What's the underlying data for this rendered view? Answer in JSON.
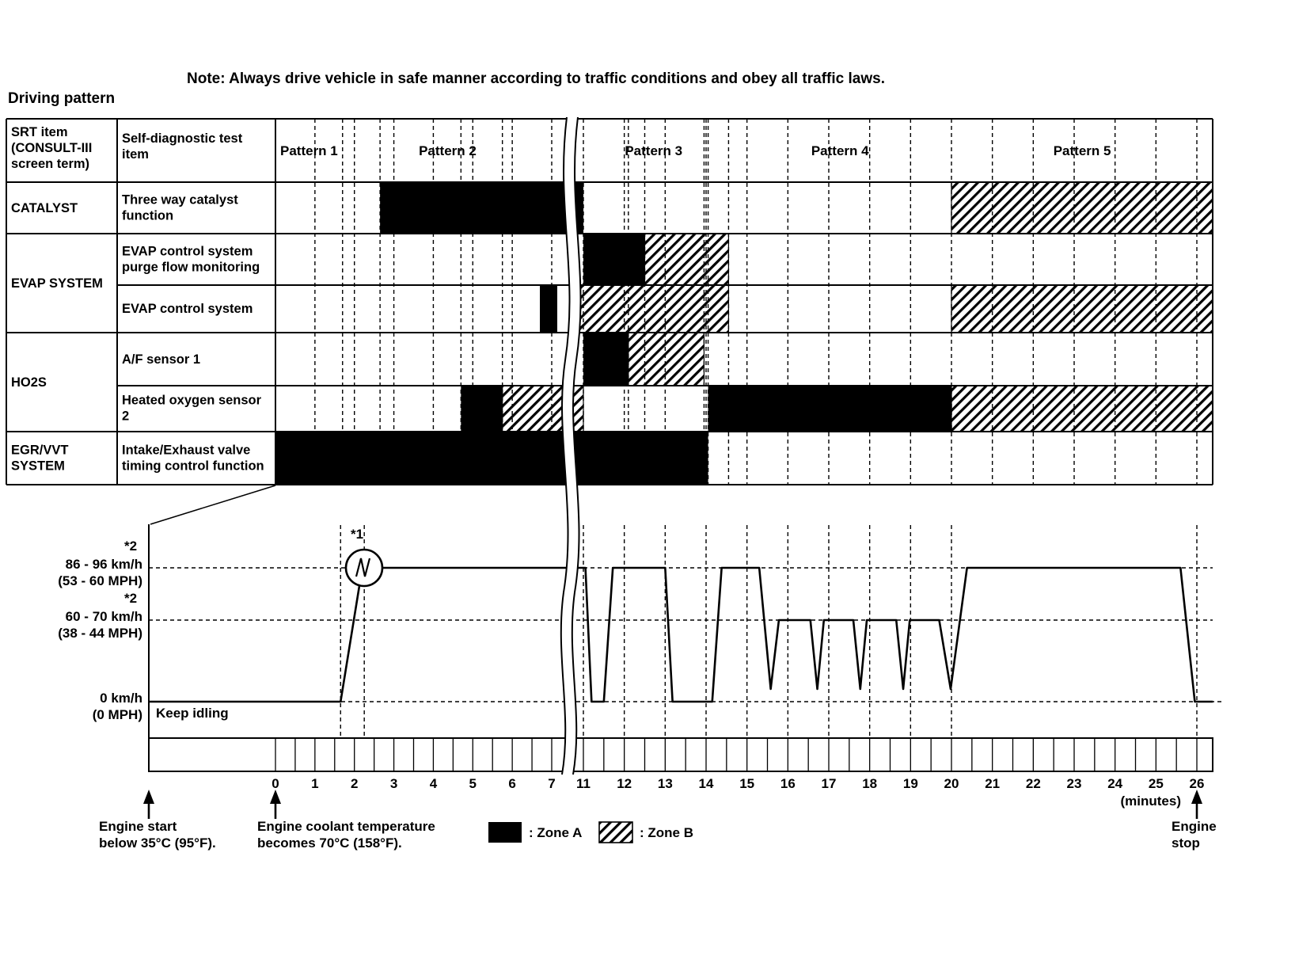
{
  "note": "Note: Always drive vehicle in safe manner according to traffic conditions and obey all traffic laws.",
  "title": "Driving pattern",
  "table": {
    "col1_header": "SRT item (CONSULT-III screen term)",
    "col2_header": "Self-diagnostic test item",
    "patterns": [
      {
        "label": "Pattern 1",
        "t0": 0,
        "t1": 1.7
      },
      {
        "label": "Pattern 2",
        "t0": 1.7,
        "t1": 7.12
      },
      {
        "label": "Pattern 3",
        "t0": 10.4,
        "t1": 14.55
      },
      {
        "label": "Pattern 4",
        "t0": 14.55,
        "t1": 20
      },
      {
        "label": "Pattern 5",
        "t0": 20,
        "t1": 26.39
      }
    ],
    "groups": [
      {
        "label": "CATALYST",
        "row_start": 0,
        "row_end": 0
      },
      {
        "label": "EVAP SYSTEM",
        "row_start": 1,
        "row_end": 2
      },
      {
        "label": "HO2S",
        "row_start": 3,
        "row_end": 4
      },
      {
        "label": "EGR/VVT SYSTEM",
        "row_start": 5,
        "row_end": 5
      }
    ],
    "rows": [
      {
        "test_item": "Three way catalyst function",
        "bars": [
          {
            "t0": 2.65,
            "t1": 11,
            "zone": "A"
          },
          {
            "t0": 20,
            "t1": 26.39,
            "zone": "B"
          }
        ]
      },
      {
        "test_item": "EVAP control system purge flow monitoring",
        "bars": [
          {
            "t0": 11,
            "t1": 12.5,
            "zone": "A"
          },
          {
            "t0": 12.5,
            "t1": 14.55,
            "zone": "B"
          }
        ]
      },
      {
        "test_item": "EVAP control system",
        "bars": [
          {
            "t0": 6.7,
            "t1": 7.7,
            "zone": "A"
          },
          {
            "t0": 10.3,
            "t1": 14.55,
            "zone": "B"
          },
          {
            "t0": 20,
            "t1": 26.39,
            "zone": "B"
          }
        ]
      },
      {
        "test_item": "A/F sensor 1",
        "bars": [
          {
            "t0": 11,
            "t1": 12.1,
            "zone": "A"
          },
          {
            "t0": 12.1,
            "t1": 13.95,
            "zone": "B"
          }
        ]
      },
      {
        "test_item": "Heated oxygen sensor 2",
        "bars": [
          {
            "t0": 4.7,
            "t1": 5.75,
            "zone": "A"
          },
          {
            "t0": 5.75,
            "t1": 11,
            "zone": "B"
          },
          {
            "t0": 14.05,
            "t1": 20,
            "zone": "A"
          },
          {
            "t0": 20,
            "t1": 26.39,
            "zone": "B"
          }
        ]
      },
      {
        "test_item": "Intake/Exhaust valve timing control function",
        "bars": [
          {
            "t0": 0,
            "t1": 14.05,
            "zone": "A"
          }
        ]
      }
    ]
  },
  "graph": {
    "levels": [
      {
        "id": "hi",
        "label": "86 - 96 km/h\n(53 - 60 MPH)",
        "star": "*2"
      },
      {
        "id": "mid",
        "label": "60 - 70 km/h\n(38 - 44 MPH)",
        "star": "*2"
      },
      {
        "id": "zero",
        "label": "0 km/h\n(0 MPH)"
      }
    ],
    "keep_idling": "Keep idling",
    "star1": "*1",
    "trace": [
      [
        -3.2,
        "zero"
      ],
      [
        1.65,
        "zero"
      ],
      [
        2.2,
        "hi"
      ],
      [
        11.05,
        "hi"
      ],
      [
        11.2,
        "zero"
      ],
      [
        11.5,
        "zero"
      ],
      [
        11.72,
        "hi"
      ],
      [
        13.0,
        "hi"
      ],
      [
        13.18,
        "zero"
      ],
      [
        14.15,
        "zero"
      ],
      [
        14.38,
        "hi"
      ],
      [
        15.3,
        "hi"
      ],
      [
        15.58,
        "dip"
      ],
      [
        15.78,
        "mid"
      ],
      [
        16.55,
        "mid"
      ],
      [
        16.72,
        "dip"
      ],
      [
        16.88,
        "mid"
      ],
      [
        17.6,
        "mid"
      ],
      [
        17.77,
        "dip"
      ],
      [
        17.93,
        "mid"
      ],
      [
        18.65,
        "mid"
      ],
      [
        18.82,
        "dip"
      ],
      [
        18.98,
        "mid"
      ],
      [
        19.7,
        "mid"
      ],
      [
        19.98,
        "dip"
      ],
      [
        20.38,
        "hi"
      ],
      [
        25.6,
        "hi"
      ],
      [
        25.95,
        "zero"
      ],
      [
        26.39,
        "zero"
      ]
    ]
  },
  "axis": {
    "minute_labels": [
      "0",
      "1",
      "2",
      "3",
      "4",
      "5",
      "6",
      "7",
      "11",
      "12",
      "13",
      "14",
      "15",
      "16",
      "17",
      "18",
      "19",
      "20",
      "21",
      "22",
      "23",
      "24",
      "25",
      "26"
    ],
    "minute_values": [
      0,
      1,
      2,
      3,
      4,
      5,
      6,
      7,
      11,
      12,
      13,
      14,
      15,
      16,
      17,
      18,
      19,
      20,
      21,
      22,
      23,
      24,
      25,
      26
    ],
    "unit_label": "(minutes)"
  },
  "legend": [
    {
      "zone": "A",
      "label": ": Zone A"
    },
    {
      "zone": "B",
      "label": ": Zone B"
    }
  ],
  "annotations": {
    "engine_start": "Engine start\nbelow 35°C (95°F).",
    "coolant": "Engine coolant temperature\nbecomes 70°C (158°F).",
    "engine_stop": "Engine\nstop"
  },
  "colors": {
    "ink": "#000000",
    "paper": "#ffffff"
  }
}
